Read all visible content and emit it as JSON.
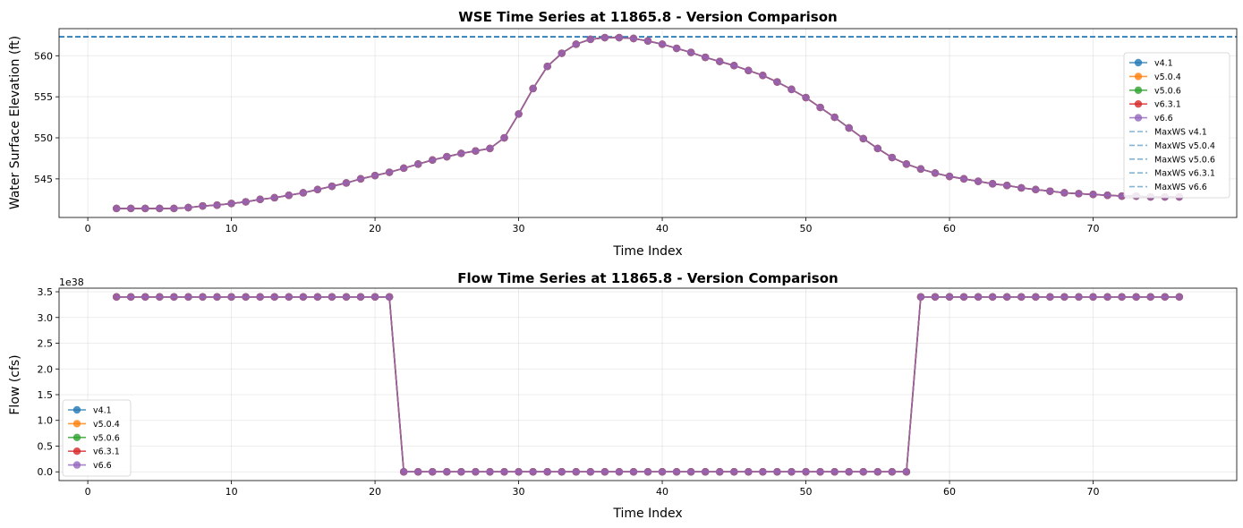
{
  "figure": {
    "background": "#ffffff"
  },
  "chart_data": [
    {
      "type": "line",
      "title": "WSE Time Series at 11865.8 - Version Comparison",
      "xlabel": "Time Index",
      "ylabel": "Water Surface Elevation (ft)",
      "xlim": [
        -2,
        80
      ],
      "ylim": [
        540.3,
        563.3
      ],
      "xticks": [
        0,
        10,
        20,
        30,
        40,
        50,
        60,
        70
      ],
      "yticks": [
        545,
        550,
        555,
        560
      ],
      "grid": true,
      "legend_position": "right",
      "x": [
        2,
        3,
        4,
        5,
        6,
        7,
        8,
        9,
        10,
        11,
        12,
        13,
        14,
        15,
        16,
        17,
        18,
        19,
        20,
        21,
        22,
        23,
        24,
        25,
        26,
        27,
        28,
        29,
        30,
        31,
        32,
        33,
        34,
        35,
        36,
        37,
        38,
        39,
        40,
        41,
        42,
        43,
        44,
        45,
        46,
        47,
        48,
        49,
        50,
        51,
        52,
        53,
        54,
        55,
        56,
        57,
        58,
        59,
        60,
        61,
        62,
        63,
        64,
        65,
        66,
        67,
        68,
        69,
        70,
        71,
        72,
        73,
        74,
        75,
        76
      ],
      "series": [
        {
          "name": "v4.1",
          "color": "#1f77b4",
          "marker": "o"
        },
        {
          "name": "v5.0.4",
          "color": "#ff7f0e",
          "marker": "o"
        },
        {
          "name": "v5.0.6",
          "color": "#2ca02c",
          "marker": "o"
        },
        {
          "name": "v6.3.1",
          "color": "#d62728",
          "marker": "o"
        },
        {
          "name": "v6.6",
          "color": "#9467bd",
          "marker": "o"
        }
      ],
      "values": [
        541.4,
        541.4,
        541.4,
        541.4,
        541.4,
        541.5,
        541.7,
        541.8,
        542.0,
        542.2,
        542.5,
        542.7,
        543.0,
        543.3,
        543.7,
        544.1,
        544.5,
        545.0,
        545.4,
        545.8,
        546.3,
        546.8,
        547.3,
        547.7,
        548.1,
        548.4,
        548.7,
        550.0,
        552.9,
        556.0,
        558.7,
        560.3,
        561.4,
        562.0,
        562.2,
        562.2,
        562.1,
        561.8,
        561.4,
        560.9,
        560.4,
        559.8,
        559.3,
        558.8,
        558.2,
        557.6,
        556.8,
        555.9,
        554.9,
        553.7,
        552.5,
        551.2,
        549.9,
        548.7,
        547.6,
        546.8,
        546.2,
        545.7,
        545.3,
        545.0,
        544.7,
        544.4,
        544.2,
        543.9,
        543.7,
        543.5,
        543.3,
        543.2,
        543.1,
        543.0,
        542.9,
        542.9,
        542.8,
        542.8,
        542.8
      ],
      "reference_lines": [
        {
          "name": "MaxWS v4.1",
          "value": 562.3,
          "color": "#1f77b4",
          "style": "dashed"
        },
        {
          "name": "MaxWS v5.0.4",
          "value": 562.3,
          "color": "#1f77b4",
          "style": "dashed"
        },
        {
          "name": "MaxWS v5.0.6",
          "value": 562.3,
          "color": "#1f77b4",
          "style": "dashed"
        },
        {
          "name": "MaxWS v6.3.1",
          "value": 562.3,
          "color": "#1f77b4",
          "style": "dashed"
        },
        {
          "name": "MaxWS v6.6",
          "value": 562.3,
          "color": "#1f77b4",
          "style": "dashed"
        }
      ]
    },
    {
      "type": "line",
      "title": "Flow Time Series at 11865.8 - Version Comparison",
      "xlabel": "Time Index",
      "ylabel": "Flow (cfs)",
      "scale_label": "1e38",
      "xlim": [
        -2,
        80
      ],
      "ylim": [
        -0.17,
        3.57
      ],
      "xticks": [
        0,
        10,
        20,
        30,
        40,
        50,
        60,
        70
      ],
      "yticks": [
        0.0,
        0.5,
        1.0,
        1.5,
        2.0,
        2.5,
        3.0,
        3.5
      ],
      "ytick_labels": [
        "0.0",
        "0.5",
        "1.0",
        "1.5",
        "2.0",
        "2.5",
        "3.0",
        "3.5"
      ],
      "grid": true,
      "legend_position": "lower left",
      "x": [
        2,
        3,
        4,
        5,
        6,
        7,
        8,
        9,
        10,
        11,
        12,
        13,
        14,
        15,
        16,
        17,
        18,
        19,
        20,
        21,
        22,
        23,
        24,
        25,
        26,
        27,
        28,
        29,
        30,
        31,
        32,
        33,
        34,
        35,
        36,
        37,
        38,
        39,
        40,
        41,
        42,
        43,
        44,
        45,
        46,
        47,
        48,
        49,
        50,
        51,
        52,
        53,
        54,
        55,
        56,
        57,
        58,
        59,
        60,
        61,
        62,
        63,
        64,
        65,
        66,
        67,
        68,
        69,
        70,
        71,
        72,
        73,
        74,
        75,
        76
      ],
      "series": [
        {
          "name": "v4.1",
          "color": "#1f77b4",
          "marker": "o"
        },
        {
          "name": "v5.0.4",
          "color": "#ff7f0e",
          "marker": "o"
        },
        {
          "name": "v5.0.6",
          "color": "#2ca02c",
          "marker": "o"
        },
        {
          "name": "v6.3.1",
          "color": "#d62728",
          "marker": "o"
        },
        {
          "name": "v6.6",
          "color": "#9467bd",
          "marker": "o"
        }
      ],
      "values": [
        3.4,
        3.4,
        3.4,
        3.4,
        3.4,
        3.4,
        3.4,
        3.4,
        3.4,
        3.4,
        3.4,
        3.4,
        3.4,
        3.4,
        3.4,
        3.4,
        3.4,
        3.4,
        3.4,
        3.4,
        0,
        0,
        0,
        0,
        0,
        0,
        0,
        0,
        0,
        0,
        0,
        0,
        0,
        0,
        0,
        0,
        0,
        0,
        0,
        0,
        0,
        0,
        0,
        0,
        0,
        0,
        0,
        0,
        0,
        0,
        0,
        0,
        0,
        0,
        0,
        0,
        3.4,
        3.4,
        3.4,
        3.4,
        3.4,
        3.4,
        3.4,
        3.4,
        3.4,
        3.4,
        3.4,
        3.4,
        3.4,
        3.4,
        3.4,
        3.4,
        3.4,
        3.4,
        3.4
      ]
    }
  ]
}
